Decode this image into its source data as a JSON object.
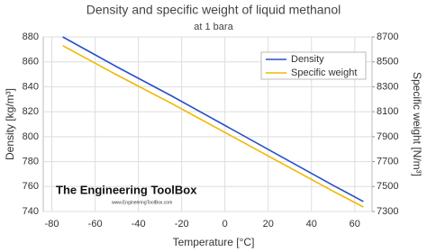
{
  "chart_data": {
    "type": "line",
    "title": "Density and specific weight of liquid methanol",
    "subtitle": "at 1 bara",
    "x_label": "Temperature [°C]",
    "y_label": "Density [kg/m³]",
    "y2_label": "Specific weight [N/m³]",
    "watermark": "The Engineering ToolBox",
    "watermark_url": "www.EngineeringToolBox.com",
    "x": [
      -75,
      -50,
      -25,
      0,
      25,
      50,
      64
    ],
    "series": [
      {
        "name": "Density",
        "color": "#2850c8",
        "values": [
          880,
          856,
          833,
          809,
          785,
          761,
          748
        ]
      },
      {
        "name": "Specific weight",
        "color": "#f0b800",
        "axis": "y2",
        "values": [
          8630,
          8395,
          8169,
          7934,
          7698,
          7463,
          7336
        ]
      }
    ],
    "xlim": [
      -84,
      68
    ],
    "xticks": [
      -80,
      -60,
      -40,
      -20,
      0,
      20,
      40,
      60
    ],
    "ylim": [
      740,
      880
    ],
    "yticks": [
      740,
      760,
      780,
      800,
      820,
      840,
      860,
      880
    ],
    "y2lim": [
      7300,
      8700
    ],
    "y2ticks": [
      7300,
      7500,
      7700,
      7900,
      8100,
      8300,
      8500,
      8700
    ],
    "grid": true,
    "legend": "top-right"
  }
}
